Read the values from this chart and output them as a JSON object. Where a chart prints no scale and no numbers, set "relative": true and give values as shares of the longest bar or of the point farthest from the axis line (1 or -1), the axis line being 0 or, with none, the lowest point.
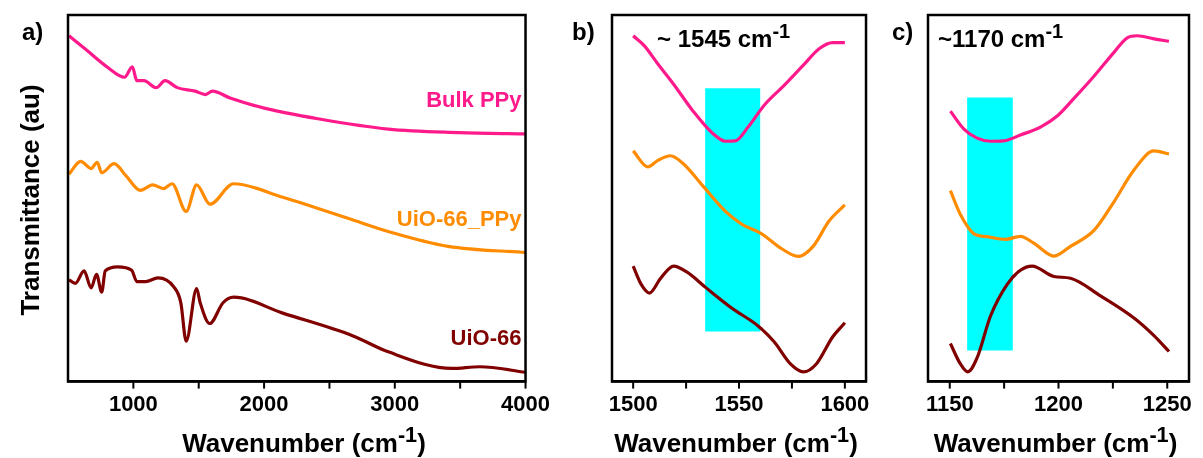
{
  "chart_data": [
    {
      "type": "line",
      "title": "a)",
      "xlabel": "Wavenumber (cm$^{-1}$)",
      "ylabel": "Transmittance (au)",
      "relative": true,
      "marker": "none",
      "xlim": [
        500,
        4000
      ],
      "xticks": [
        1000,
        {
          "value": 1500,
          "label": null
        },
        2000,
        {
          "value": 2500,
          "label": null
        },
        3000,
        {
          "value": 3500,
          "label": null
        },
        4000
      ],
      "series": [
        {
          "name": "Bulk PPy",
          "color": "#ff1a8c",
          "x": [
            508,
            637,
            798,
            933,
            992,
            1027,
            1081,
            1175,
            1242,
            1336,
            1471,
            1552,
            1605,
            1740,
            2009,
            2412,
            2950,
            3489,
            4000
          ],
          "values": [
            1.0,
            0.96,
            0.91,
            0.88,
            0.91,
            0.87,
            0.87,
            0.85,
            0.87,
            0.85,
            0.84,
            0.83,
            0.84,
            0.82,
            0.79,
            0.76,
            0.73,
            0.72,
            0.716
          ]
        },
        {
          "name": "UiO-66_PPy",
          "color": "#ff8c00",
          "x": [
            508,
            597,
            677,
            723,
            758,
            852,
            946,
            1054,
            1148,
            1229,
            1296,
            1404,
            1484,
            1586,
            1767,
            2143,
            2681,
            2950,
            3408,
            4000
          ],
          "values": [
            0.6,
            0.637,
            0.616,
            0.634,
            0.604,
            0.63,
            0.594,
            0.553,
            0.569,
            0.558,
            0.572,
            0.492,
            0.569,
            0.513,
            0.572,
            0.533,
            0.467,
            0.434,
            0.391,
            0.373
          ]
        },
        {
          "name": "UiO-66",
          "color": "#800000",
          "x": [
            508,
            556,
            623,
            677,
            718,
            758,
            785,
            879,
            987,
            1027,
            1094,
            1188,
            1309,
            1363,
            1404,
            1484,
            1511,
            1584,
            1686,
            1767,
            2143,
            2681,
            2950,
            3435,
            3650,
            4000
          ],
          "values": [
            0.294,
            0.284,
            0.32,
            0.271,
            0.31,
            0.259,
            0.32,
            0.332,
            0.322,
            0.289,
            0.289,
            0.3,
            0.274,
            0.228,
            0.117,
            0.269,
            0.228,
            0.168,
            0.228,
            0.244,
            0.198,
            0.132,
            0.086,
            0.038,
            0.043,
            0.027
          ]
        }
      ]
    },
    {
      "type": "line",
      "title": "b)",
      "xlabel": "Wavenumber (cm$^{-1}$)",
      "relative": true,
      "marker": "none",
      "xlim": [
        1490,
        1610
      ],
      "xticks": [
        1500,
        {
          "value": 1525,
          "label": null
        },
        1550,
        {
          "value": 1575,
          "label": null
        },
        1600
      ],
      "annotations": [
        "~ 1545 cm$^{-1}$"
      ],
      "bands": [
        {
          "axis": "x",
          "from": 1534,
          "to": 1560,
          "color": "#00ffff"
        }
      ],
      "series": [
        {
          "color": "#ff1a8c",
          "x": [
            1500,
            1505.4,
            1511.5,
            1519.1,
            1528.3,
            1537.5,
            1543.6,
            1548.2,
            1554.3,
            1562,
            1571.2,
            1580.4,
            1588,
            1594.2,
            1600
          ],
          "values": [
            1.0,
            0.97,
            0.92,
            0.86,
            0.782,
            0.718,
            0.695,
            0.696,
            0.736,
            0.8,
            0.856,
            0.915,
            0.963,
            0.98,
            0.98
          ]
        },
        {
          "color": "#ff8c00",
          "x": [
            1500,
            1506.9,
            1511.5,
            1517.6,
            1523.7,
            1532.9,
            1543.6,
            1551.3,
            1560.5,
            1569.7,
            1578.1,
            1585,
            1592.6,
            1600
          ],
          "values": [
            0.667,
            0.621,
            0.639,
            0.653,
            0.63,
            0.566,
            0.492,
            0.455,
            0.428,
            0.386,
            0.362,
            0.391,
            0.465,
            0.511
          ]
        },
        {
          "color": "#800000",
          "x": [
            1500,
            1503.8,
            1507.7,
            1513,
            1519.1,
            1525.3,
            1534.5,
            1546.7,
            1559,
            1566.6,
            1574.3,
            1580.4,
            1586.5,
            1594.2,
            1600
          ],
          "values": [
            0.334,
            0.281,
            0.256,
            0.299,
            0.334,
            0.317,
            0.271,
            0.212,
            0.161,
            0.115,
            0.051,
            0.028,
            0.051,
            0.129,
            0.17
          ]
        }
      ]
    },
    {
      "type": "line",
      "title": "c)",
      "xlabel": "Wavenumber (cm$^{-1}$)",
      "relative": true,
      "marker": "none",
      "xlim": [
        1140,
        1260
      ],
      "xticks": [
        1150,
        {
          "value": 1175,
          "label": null
        },
        1200,
        {
          "value": 1225,
          "label": null
        },
        1250
      ],
      "annotations": [
        "~1170 cm$^{-1}$"
      ],
      "bands": [
        {
          "axis": "x",
          "from": 1158,
          "to": 1179,
          "color": "#00ffff"
        }
      ],
      "series": [
        {
          "color": "#ff1a8c",
          "x": [
            1150.3,
            1156.4,
            1162.6,
            1168.7,
            1174.8,
            1182.5,
            1191.7,
            1199.4,
            1207.1,
            1216.3,
            1225.5,
            1231.6,
            1236.2,
            1243.9,
            1250.8
          ],
          "values": [
            0.782,
            0.731,
            0.704,
            0.695,
            0.696,
            0.713,
            0.736,
            0.768,
            0.819,
            0.883,
            0.952,
            0.994,
            1.0,
            0.991,
            0.984
          ]
        },
        {
          "color": "#ff8c00",
          "x": [
            1150.3,
            1154.9,
            1161,
            1167.2,
            1175.6,
            1182.5,
            1188.7,
            1197.9,
            1205.5,
            1216.3,
            1225.5,
            1234.7,
            1243.9,
            1250.8
          ],
          "values": [
            0.552,
            0.483,
            0.428,
            0.419,
            0.411,
            0.42,
            0.4,
            0.363,
            0.391,
            0.437,
            0.52,
            0.612,
            0.667,
            0.658
          ]
        },
        {
          "color": "#800000",
          "x": [
            1150.3,
            1154.9,
            1158.3,
            1162.6,
            1168.7,
            1176.4,
            1182.5,
            1187.9,
            1197.9,
            1205.5,
            1219.3,
            1234.7,
            1243.9,
            1250.8
          ],
          "values": [
            0.11,
            0.051,
            0.028,
            0.069,
            0.189,
            0.281,
            0.322,
            0.334,
            0.304,
            0.299,
            0.248,
            0.184,
            0.133,
            0.087
          ]
        }
      ]
    }
  ]
}
